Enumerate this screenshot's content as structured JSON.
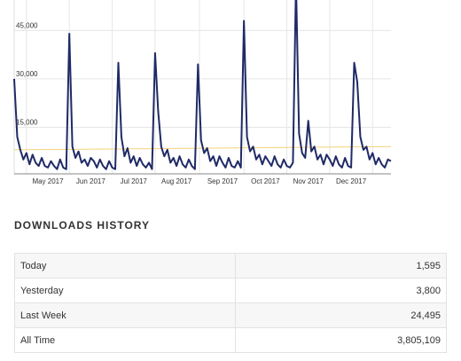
{
  "chart_data": {
    "type": "line",
    "categories": [
      null,
      null,
      null,
      null,
      null,
      null,
      null,
      null,
      null,
      null,
      null,
      "May 2017",
      null,
      null,
      null,
      null,
      null,
      null,
      null,
      null,
      null,
      null,
      null,
      null,
      null,
      "Jun 2017",
      null,
      null,
      null,
      null,
      null,
      null,
      null,
      null,
      null,
      null,
      null,
      null,
      null,
      "Jul 2017",
      null,
      null,
      null,
      null,
      null,
      null,
      null,
      null,
      null,
      null,
      null,
      null,
      null,
      "Aug 2017",
      null,
      null,
      null,
      null,
      null,
      null,
      null,
      null,
      null,
      null,
      null,
      null,
      null,
      null,
      "Sep 2017",
      null,
      null,
      null,
      null,
      null,
      null,
      null,
      null,
      null,
      null,
      null,
      null,
      null,
      "Oct 2017",
      null,
      null,
      null,
      null,
      null,
      null,
      null,
      null,
      null,
      null,
      null,
      null,
      null,
      "Nov 2017",
      null,
      null,
      null,
      null,
      null,
      null,
      null,
      null,
      null,
      null,
      null,
      null,
      null,
      "Dec 2017",
      null,
      null,
      null,
      null,
      null,
      null,
      null,
      null,
      null,
      null,
      null,
      null,
      null
    ],
    "series": [
      {
        "color": "#1f2a66",
        "values": [
          30000,
          12000,
          8000,
          5000,
          7000,
          3500,
          6500,
          4000,
          3000,
          5500,
          3000,
          2500,
          4500,
          3000,
          2000,
          5000,
          2500,
          2000,
          44000,
          9000,
          5500,
          7500,
          4000,
          5000,
          3000,
          5500,
          4500,
          2500,
          5000,
          3000,
          2000,
          4500,
          2500,
          2000,
          35000,
          12000,
          6000,
          8500,
          4000,
          6000,
          3000,
          5500,
          3500,
          2500,
          4000,
          2000,
          38000,
          20000,
          9000,
          6000,
          8000,
          4000,
          5500,
          3000,
          6000,
          3500,
          2500,
          5000,
          3000,
          2000,
          34500,
          11000,
          7000,
          8500,
          4500,
          6000,
          3000,
          6000,
          4000,
          2500,
          5500,
          3000,
          2500,
          4500,
          2500,
          48000,
          12000,
          7500,
          9000,
          5000,
          6500,
          3500,
          6000,
          4500,
          3000,
          6000,
          3500,
          2500,
          5000,
          3000,
          2500,
          4000,
          60000,
          13000,
          7000,
          5500,
          17000,
          7500,
          9000,
          5000,
          6500,
          3500,
          6500,
          5000,
          3000,
          6000,
          3500,
          2500,
          5500,
          3000,
          2500,
          35000,
          29000,
          12000,
          8000,
          9000,
          5000,
          7000,
          3500,
          5500,
          3500,
          2500,
          5000,
          4500
        ]
      }
    ],
    "reference_line": {
      "color": "#f5d27a",
      "values": [
        8000,
        9000
      ]
    },
    "ylim": [
      0,
      55000
    ],
    "yticks": [
      {
        "value": 15000,
        "label": "15,000"
      },
      {
        "value": 30000,
        "label": "30,000"
      },
      {
        "value": 45000,
        "label": "45,000"
      }
    ],
    "grid": true
  },
  "downloads_history": {
    "title": "DOWNLOADS HISTORY",
    "rows": [
      [
        "Today",
        "1,595"
      ],
      [
        "Yesterday",
        "3,800"
      ],
      [
        "Last Week",
        "24,495"
      ],
      [
        "All Time",
        "3,805,109"
      ]
    ]
  }
}
